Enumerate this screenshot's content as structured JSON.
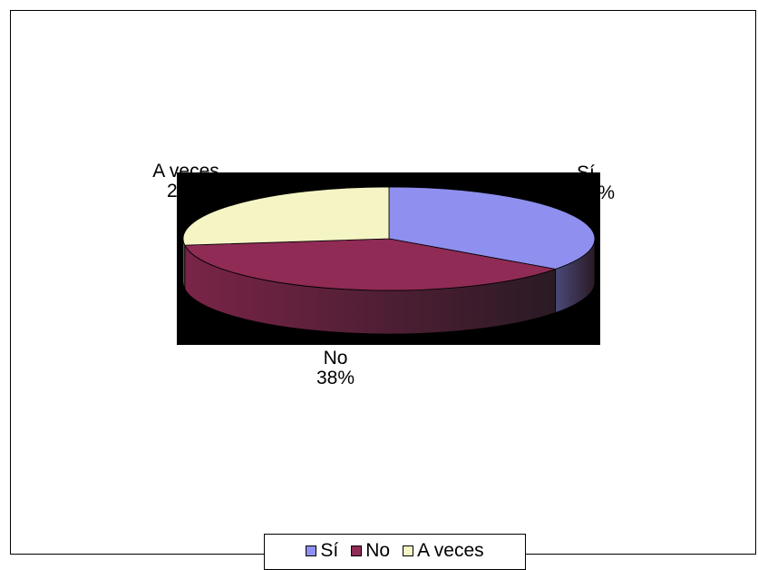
{
  "chart_data": {
    "type": "pie",
    "style": "3d",
    "slices": [
      {
        "label": "Sí",
        "value": 35,
        "value_label": "35%",
        "color": "#8F8FEF",
        "side_color": "#4A4A7A"
      },
      {
        "label": "No",
        "value": 38,
        "value_label": "38%",
        "color": "#8F2B55",
        "side_color": "#7A2448"
      },
      {
        "label": "A veces",
        "value": 27,
        "value_label": "27%",
        "color": "#F5F4C4",
        "side_color": "#C9C7A0"
      }
    ],
    "legend_position": "bottom",
    "plot_background": "#000000",
    "border_color": "#000000"
  },
  "legend": {
    "items": [
      {
        "label": "Sí",
        "color": "#8F8FEF"
      },
      {
        "label": "No",
        "color": "#8F2B55"
      },
      {
        "label": "A veces",
        "color": "#F5F4C4"
      }
    ]
  }
}
